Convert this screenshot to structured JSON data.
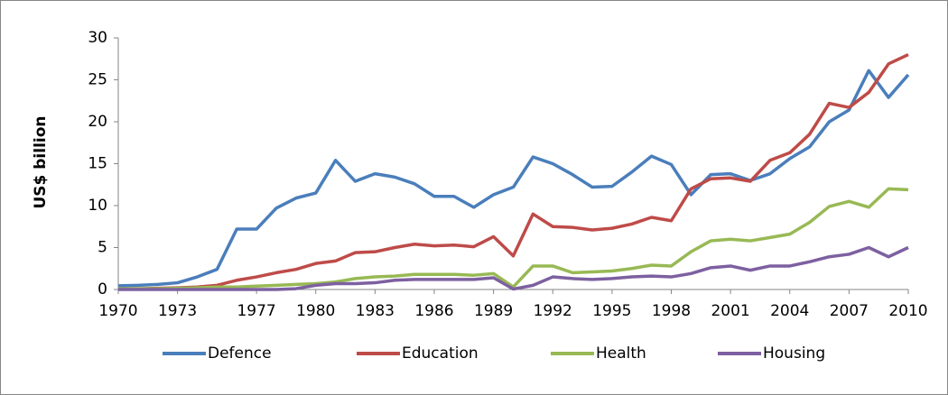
{
  "chart_data": {
    "type": "line",
    "y_label": "US$ billion",
    "x": [
      1970,
      1971,
      1972,
      1973,
      1974,
      1975,
      1976,
      1977,
      1978,
      1979,
      1980,
      1981,
      1982,
      1983,
      1984,
      1985,
      1986,
      1987,
      1988,
      1989,
      1990,
      1991,
      1992,
      1993,
      1994,
      1995,
      1996,
      1997,
      1998,
      1999,
      2000,
      2001,
      2002,
      2003,
      2004,
      2005,
      2006,
      2007,
      2008,
      2009,
      2010
    ],
    "xlim": [
      1970,
      2010
    ],
    "xticks": [
      1970,
      1973,
      1977,
      1980,
      1983,
      1986,
      1989,
      1992,
      1995,
      1998,
      2001,
      2004,
      2007,
      2010
    ],
    "ylim": [
      0,
      30
    ],
    "yticks": [
      0,
      5,
      10,
      15,
      20,
      25,
      30
    ],
    "grid": false,
    "legend": "bottom",
    "series": [
      {
        "name": "Defence",
        "color": "#4a7ebb",
        "values": [
          0.45,
          0.5,
          0.6,
          0.8,
          1.5,
          2.4,
          7.2,
          7.2,
          9.7,
          10.9,
          11.5,
          15.4,
          12.9,
          13.8,
          13.4,
          12.6,
          11.1,
          11.1,
          9.8,
          11.3,
          12.2,
          15.8,
          15.0,
          13.7,
          12.2,
          12.3,
          14.0,
          15.9,
          14.9,
          11.3,
          13.7,
          13.8,
          13.0,
          13.8,
          15.6,
          17.0,
          20.0,
          21.4,
          26.1,
          22.9,
          25.6
        ]
      },
      {
        "name": "Education",
        "color": "#be4b48",
        "values": [
          0.1,
          0.1,
          0.15,
          0.2,
          0.3,
          0.5,
          1.1,
          1.5,
          2.0,
          2.4,
          3.1,
          3.4,
          4.4,
          4.5,
          5.0,
          5.4,
          5.2,
          5.3,
          5.1,
          6.3,
          4.0,
          9.0,
          7.5,
          7.4,
          7.1,
          7.3,
          7.8,
          8.6,
          8.2,
          12.0,
          13.2,
          13.3,
          12.9,
          15.4,
          16.3,
          18.5,
          22.2,
          21.7,
          23.5,
          26.9,
          28.0
        ]
      },
      {
        "name": "Health",
        "color": "#98b954",
        "values": [
          0.1,
          0.1,
          0.1,
          0.15,
          0.2,
          0.3,
          0.3,
          0.4,
          0.5,
          0.6,
          0.7,
          0.9,
          1.3,
          1.5,
          1.6,
          1.8,
          1.8,
          1.8,
          1.7,
          1.9,
          0.3,
          2.8,
          2.8,
          2.0,
          2.1,
          2.2,
          2.5,
          2.9,
          2.8,
          4.5,
          5.8,
          6.0,
          5.8,
          6.2,
          6.6,
          8.0,
          9.9,
          10.5,
          9.8,
          12.0,
          11.9
        ]
      },
      {
        "name": "Housing",
        "color": "#7d60a0",
        "values": [
          0.0,
          0.0,
          0.0,
          0.0,
          0.0,
          0.0,
          0.0,
          0.0,
          0.0,
          0.1,
          0.5,
          0.7,
          0.7,
          0.8,
          1.1,
          1.2,
          1.2,
          1.2,
          1.2,
          1.4,
          0.05,
          0.5,
          1.5,
          1.3,
          1.2,
          1.3,
          1.5,
          1.6,
          1.5,
          1.9,
          2.6,
          2.8,
          2.3,
          2.8,
          2.8,
          3.3,
          3.9,
          4.2,
          5.0,
          3.9,
          5.0
        ]
      }
    ]
  }
}
